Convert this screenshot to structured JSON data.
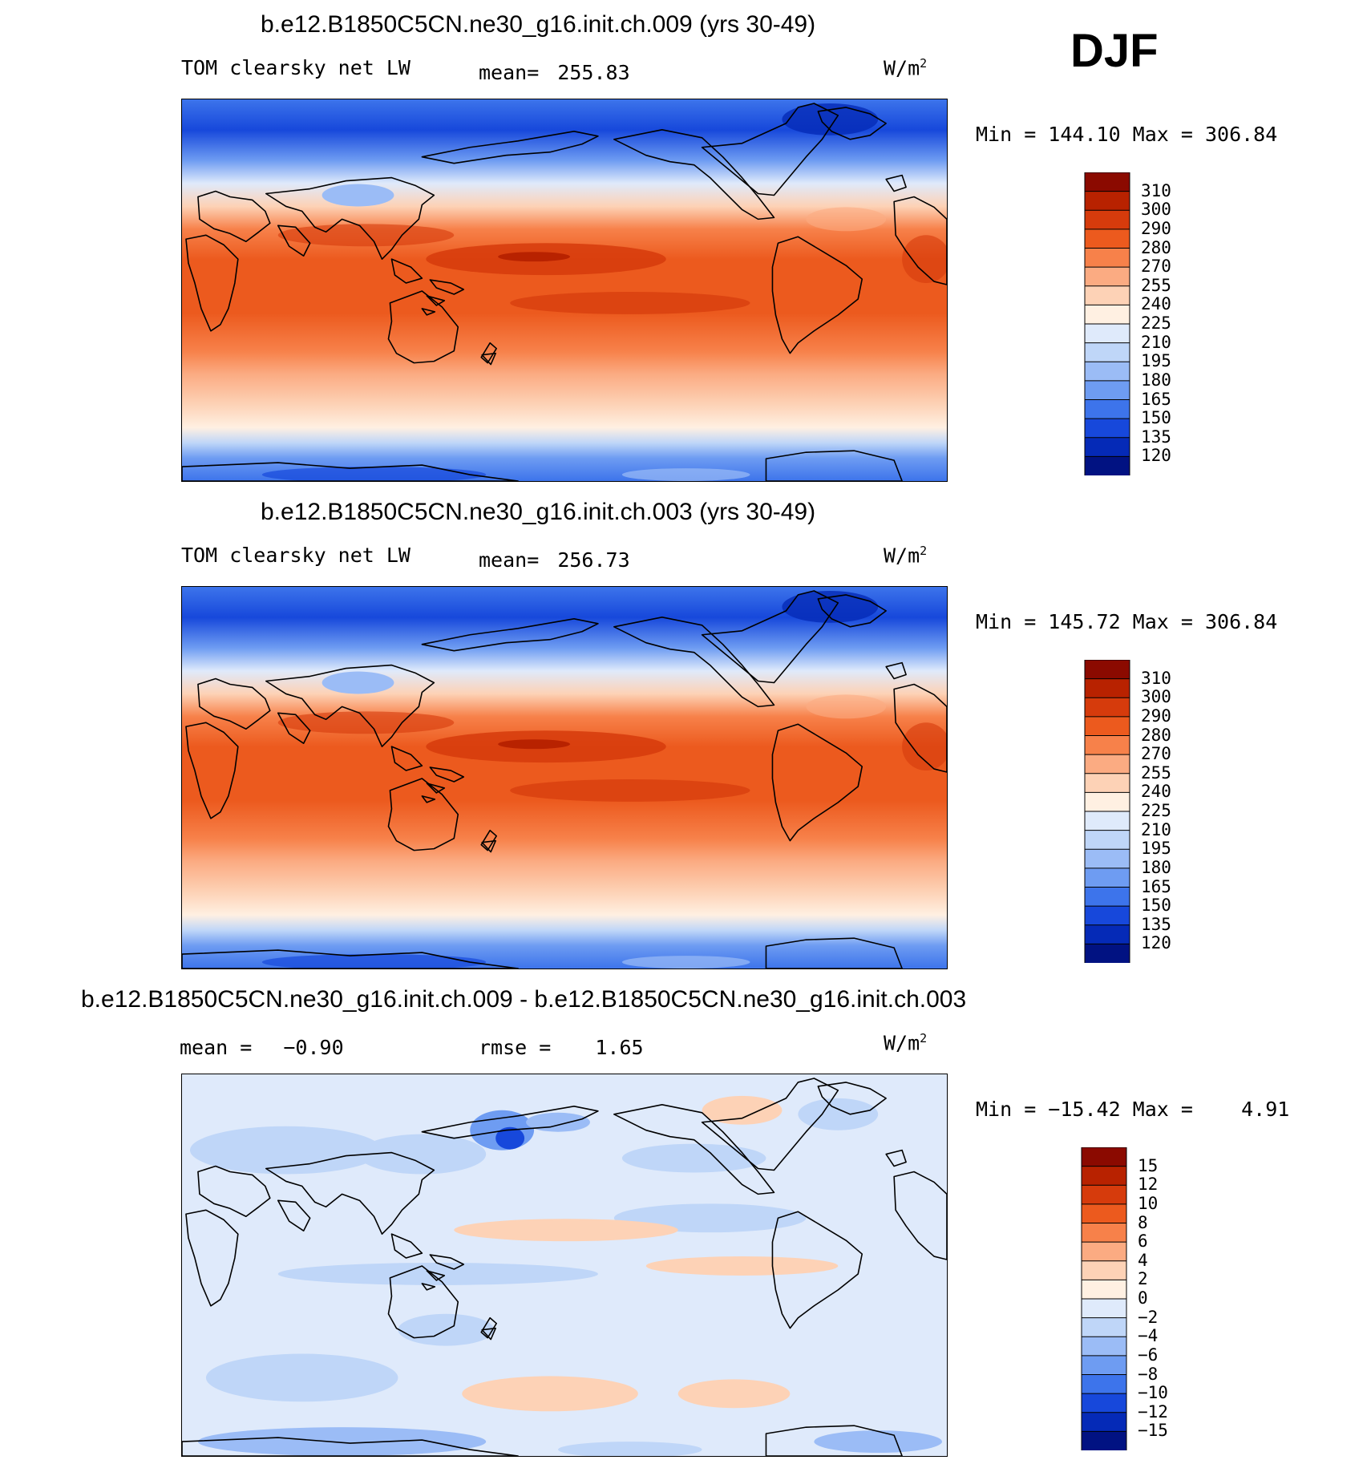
{
  "season": "DJF",
  "units": "W/m",
  "units_sup": "2",
  "panels": [
    {
      "title": "b.e12.B1850C5CN.ne30_g16.init.ch.009 (yrs 30-49)",
      "left_label": "TOM clearsky net LW",
      "stat_label": "mean=",
      "stat_value": "255.83",
      "minmax": "Min = 144.10 Max = 306.84",
      "levels": [
        "310",
        "300",
        "290",
        "280",
        "270",
        "255",
        "240",
        "225",
        "210",
        "195",
        "180",
        "165",
        "150",
        "135",
        "120"
      ],
      "palette": [
        "#8b0a00",
        "#b82200",
        "#d63b0c",
        "#ec5a1e",
        "#f7814a",
        "#fbab82",
        "#fdd2b6",
        "#fff0e2",
        "#dfeafb",
        "#bfd6f8",
        "#9bbcf6",
        "#6e9cf2",
        "#3d74eb",
        "#1748db",
        "#052ab7",
        "#011282"
      ]
    },
    {
      "title": "b.e12.B1850C5CN.ne30_g16.init.ch.003 (yrs 30-49)",
      "left_label": "TOM clearsky net LW",
      "stat_label": "mean=",
      "stat_value": "256.73",
      "minmax": "Min = 145.72 Max = 306.84",
      "levels": [
        "310",
        "300",
        "290",
        "280",
        "270",
        "255",
        "240",
        "225",
        "210",
        "195",
        "180",
        "165",
        "150",
        "135",
        "120"
      ],
      "palette": [
        "#8b0a00",
        "#b82200",
        "#d63b0c",
        "#ec5a1e",
        "#f7814a",
        "#fbab82",
        "#fdd2b6",
        "#fff0e2",
        "#dfeafb",
        "#bfd6f8",
        "#9bbcf6",
        "#6e9cf2",
        "#3d74eb",
        "#1748db",
        "#052ab7",
        "#011282"
      ]
    },
    {
      "title": "b.e12.B1850C5CN.ne30_g16.init.ch.009 - b.e12.B1850C5CN.ne30_g16.init.ch.003",
      "left_label": "mean =",
      "left_value": "−0.90",
      "stat_label": "rmse =",
      "stat_value": "1.65",
      "minmax": "Min = −15.42 Max =    4.91",
      "levels": [
        "15",
        "12",
        "10",
        "8",
        "6",
        "4",
        "2",
        "0",
        "−2",
        "−4",
        "−6",
        "−8",
        "−10",
        "−12",
        "−15"
      ],
      "palette": [
        "#8b0a00",
        "#b82200",
        "#d63b0c",
        "#ec5a1e",
        "#f7814a",
        "#fbab82",
        "#fdd2b6",
        "#fff0e2",
        "#dfeafb",
        "#bfd6f8",
        "#9bbcf6",
        "#6e9cf2",
        "#3d74eb",
        "#1748db",
        "#052ab7",
        "#011282"
      ]
    }
  ]
}
